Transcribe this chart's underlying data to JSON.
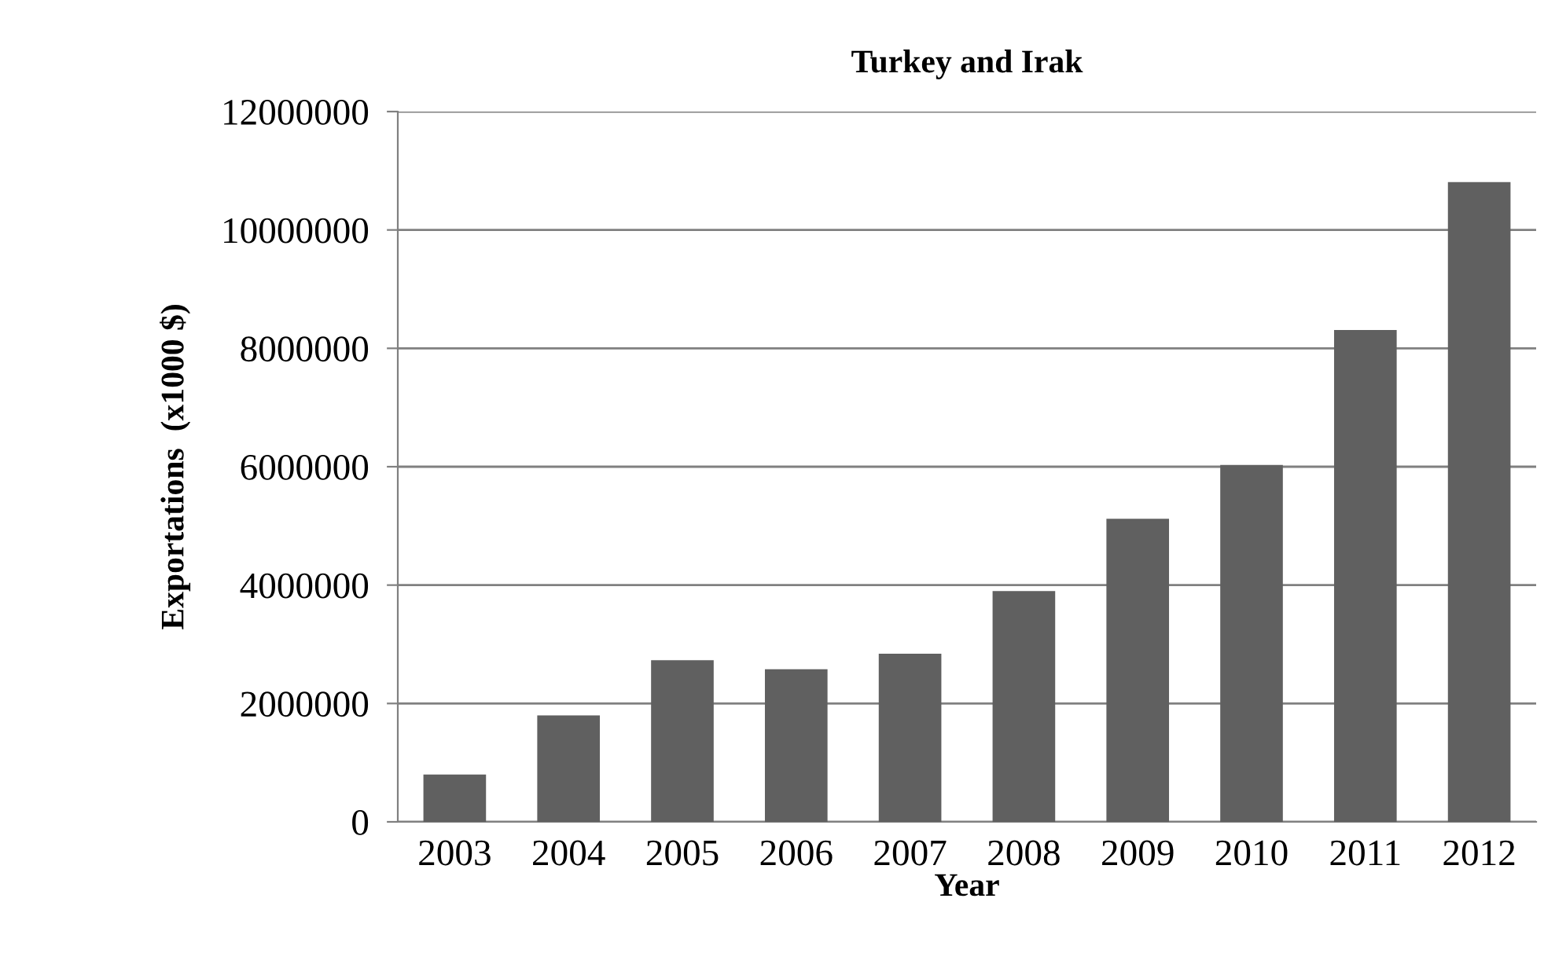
{
  "chart_data": {
    "type": "bar",
    "title": "Turkey and Irak",
    "xlabel": "Year",
    "ylabel": "Exportations  (x1000 $)",
    "categories": [
      "2003",
      "2004",
      "2005",
      "2006",
      "2007",
      "2008",
      "2009",
      "2010",
      "2011",
      "2012"
    ],
    "values": [
      800000,
      1800000,
      2730000,
      2580000,
      2840000,
      3900000,
      5120000,
      6030000,
      8310000,
      10810000
    ],
    "color": "#606060",
    "ylim": [
      0,
      12000000
    ],
    "yticks": [
      0,
      2000000,
      4000000,
      6000000,
      8000000,
      10000000,
      12000000
    ],
    "grid": "y",
    "legend": false
  }
}
